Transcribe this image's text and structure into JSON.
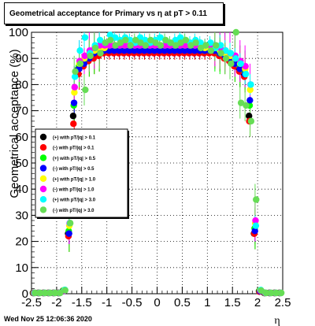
{
  "title": "Geometrical acceptance for Primary vs   η at pT > 0.11",
  "footer": "Wed Nov 25 12:06:36 2020",
  "chart_data": {
    "type": "scatter",
    "title": "Geometrical acceptance for Primary vs   η at pT > 0.11",
    "xlabel": "η",
    "ylabel": "Geometrical acceptance (%)",
    "xlim": [
      -2.5,
      2.5
    ],
    "ylim": [
      0,
      100
    ],
    "x_ticks": [
      "-2.5",
      "-2",
      "-1.5",
      "-1",
      "-0.5",
      "0",
      "0.5",
      "1",
      "1.5",
      "2",
      "2.5"
    ],
    "y_ticks": [
      "0",
      "10",
      "20",
      "30",
      "40",
      "50",
      "60",
      "70",
      "80",
      "90",
      "100"
    ],
    "grid": true,
    "legend_position": "left-middle",
    "x": [
      -2.45,
      -2.35,
      -2.25,
      -2.15,
      -2.05,
      -1.95,
      -1.85,
      -1.75,
      -1.65,
      -1.55,
      -1.45,
      -1.35,
      -1.25,
      -1.15,
      -1.05,
      -0.95,
      -0.85,
      -0.75,
      -0.65,
      -0.55,
      -0.45,
      -0.35,
      -0.25,
      -0.15,
      -0.05,
      0.05,
      0.15,
      0.25,
      0.35,
      0.45,
      0.55,
      0.65,
      0.75,
      0.85,
      0.95,
      1.05,
      1.15,
      1.25,
      1.35,
      1.45,
      1.55,
      1.65,
      1.75,
      1.85,
      1.95,
      2.05,
      2.15,
      2.25,
      2.35,
      2.45
    ],
    "series": [
      {
        "name": "(+) with pT/|q| > 0.1",
        "color": "#000000",
        "values": [
          0.3,
          0.3,
          0.3,
          0.3,
          0.3,
          0.3,
          1.2,
          23,
          68,
          86,
          88,
          90,
          91,
          92,
          93,
          93,
          93,
          93,
          93,
          93,
          93,
          93,
          93,
          93,
          93,
          93,
          93,
          93,
          93,
          93,
          93,
          93,
          93,
          93,
          93,
          93,
          93,
          92,
          91,
          90,
          88,
          86,
          84,
          68,
          23,
          1.0,
          0.3,
          0.3,
          0.3,
          0.3
        ]
      },
      {
        "name": "(-) with pT/|q| > 0.1",
        "color": "#ff0000",
        "values": [
          0.3,
          0.3,
          0.3,
          0.3,
          0.3,
          0.3,
          1.0,
          22,
          65,
          84,
          87,
          89,
          90,
          91,
          92,
          92,
          92,
          92,
          92,
          92,
          92,
          92,
          92,
          92,
          92,
          92,
          92,
          92,
          92,
          92,
          92,
          92,
          92,
          92,
          92,
          92,
          92,
          91,
          90,
          89,
          87,
          85,
          83,
          66,
          23,
          0.8,
          0.3,
          0.3,
          0.3,
          0.3
        ]
      },
      {
        "name": "(+) with pT/|q| > 0.5",
        "color": "#00ff00",
        "values": [
          0.3,
          0.3,
          0.3,
          0.3,
          0.3,
          0.3,
          1.3,
          24,
          72,
          87,
          89,
          91,
          92,
          93,
          93,
          94,
          94,
          94,
          94,
          94,
          94,
          94,
          94,
          94,
          94,
          94,
          94,
          94,
          94,
          94,
          94,
          94,
          94,
          94,
          93,
          93,
          93,
          92,
          92,
          91,
          89,
          87,
          85,
          72,
          25,
          1.2,
          0.3,
          0.3,
          0.3,
          0.3
        ]
      },
      {
        "name": "(-) with pT/|q| > 0.5",
        "color": "#0000ff",
        "values": [
          0.3,
          0.3,
          0.3,
          0.3,
          0.3,
          0.3,
          1.1,
          23,
          73,
          86,
          88,
          90,
          92,
          93,
          93,
          93,
          93,
          93,
          93,
          93,
          93,
          93,
          93,
          93,
          93,
          93,
          93,
          93,
          93,
          93,
          93,
          93,
          93,
          93,
          93,
          93,
          93,
          92,
          91,
          90,
          88,
          86,
          84,
          74,
          24,
          1.0,
          0.3,
          0.3,
          0.3,
          0.3
        ]
      },
      {
        "name": "(+) with pT/|q| > 1.0",
        "color": "#ffff00",
        "values": [
          0.3,
          0.3,
          0.3,
          0.3,
          0.3,
          0.3,
          1.4,
          26,
          77,
          88,
          90,
          92,
          93,
          94,
          94,
          95,
          95,
          95,
          95,
          95,
          95,
          95,
          95,
          95,
          95,
          95,
          95,
          95,
          95,
          95,
          95,
          95,
          95,
          95,
          94,
          94,
          94,
          93,
          92,
          91,
          90,
          88,
          86,
          78,
          27,
          1.3,
          0.3,
          0.3,
          0.3,
          0.3
        ]
      },
      {
        "name": "(-) with pT/|q| > 1.0",
        "color": "#ff00ff",
        "values": [
          0.3,
          0.3,
          0.3,
          0.3,
          0.3,
          0.3,
          1.2,
          27,
          79,
          89,
          91,
          93,
          94,
          95,
          95,
          95,
          95,
          95,
          95,
          95,
          95,
          95,
          95,
          95,
          95,
          95,
          95,
          95,
          95,
          95,
          95,
          95,
          95,
          95,
          95,
          95,
          95,
          94,
          93,
          92,
          91,
          89,
          87,
          80,
          28,
          1.2,
          0.3,
          0.3,
          0.3,
          0.3
        ]
      },
      {
        "name": "(+) with pT/|q| > 3.0",
        "color": "#00ffff",
        "values": [
          0.3,
          0.3,
          0.3,
          0.3,
          0.3,
          0.3,
          1.5,
          27,
          83,
          93,
          98,
          92,
          95,
          97,
          96,
          99,
          98,
          97,
          98,
          97,
          96,
          98,
          97,
          96,
          97,
          98,
          97,
          96,
          97,
          98,
          97,
          96,
          97,
          96,
          95,
          96,
          94,
          95,
          93,
          92,
          90,
          88,
          84,
          80,
          26,
          1.4,
          0.3,
          0.3,
          0.3,
          0.3
        ]
      },
      {
        "name": "(-) with pT/|q| > 3.0",
        "color": "#66dd55",
        "values": [
          0.3,
          0.3,
          0.3,
          0.3,
          0.3,
          0.3,
          1.3,
          27,
          85,
          88,
          78,
          91,
          94,
          92,
          96,
          97,
          95,
          96,
          97,
          95,
          97,
          96,
          95,
          97,
          96,
          95,
          97,
          96,
          95,
          96,
          97,
          95,
          96,
          94,
          95,
          93,
          95,
          92,
          90,
          88,
          100,
          73,
          72,
          66,
          36,
          1.2,
          0.3,
          0.3,
          0.3,
          0.3
        ]
      }
    ]
  }
}
